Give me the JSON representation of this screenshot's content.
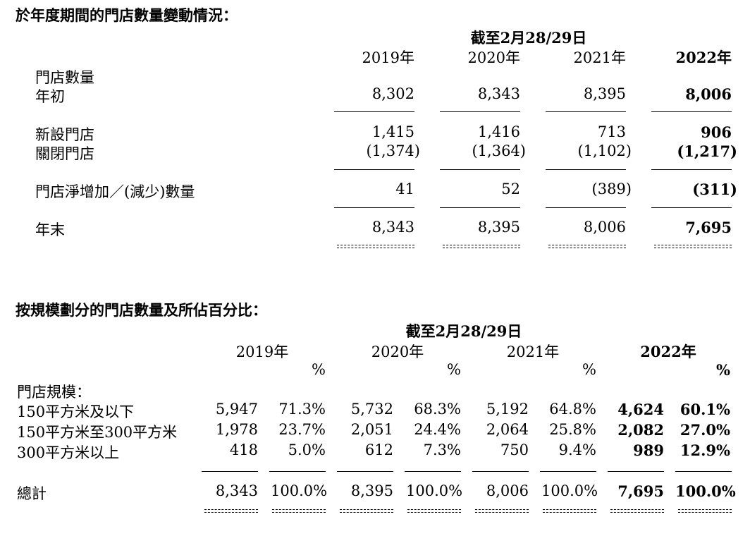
{
  "section1": {
    "title": "於年度期間的門店數量變動情況：",
    "period_header": "截至2月28/29日",
    "years": [
      "2019年",
      "2020年",
      "2021年",
      "2022年"
    ],
    "group_label": "門店數量",
    "rows": [
      {
        "label": "年初",
        "values": [
          "8,302",
          "8,343",
          "8,395",
          "8,006"
        ]
      },
      {
        "label": "新設門店",
        "values": [
          "1,415",
          "1,416",
          "713",
          "906"
        ]
      },
      {
        "label": "關閉門店",
        "values": [
          "(1,374)",
          "(1,364)",
          "(1,102)",
          "(1,217)"
        ]
      },
      {
        "label": "門店淨增加／(減少)數量",
        "values": [
          "41",
          "52",
          "(389)",
          "(311)"
        ]
      },
      {
        "label": "年末",
        "values": [
          "8,343",
          "8,395",
          "8,006",
          "7,695"
        ]
      }
    ]
  },
  "section2": {
    "title": "按規模劃分的門店數量及所佔百分比：",
    "period_header": "截至2月28/29日",
    "years": [
      "2019年",
      "2020年",
      "2021年",
      "2022年"
    ],
    "percent_symbol": "%",
    "group_label": "門店規模：",
    "rows": [
      {
        "label": "150平方米及以下",
        "values": [
          "5,947",
          "71.3%",
          "5,732",
          "68.3%",
          "5,192",
          "64.8%",
          "4,624",
          "60.1%"
        ]
      },
      {
        "label": "150平方米至300平方米",
        "values": [
          "1,978",
          "23.7%",
          "2,051",
          "24.4%",
          "2,064",
          "25.8%",
          "2,082",
          "27.0%"
        ]
      },
      {
        "label": "300平方米以上",
        "values": [
          "418",
          "5.0%",
          "612",
          "7.3%",
          "750",
          "9.4%",
          "989",
          "12.9%"
        ]
      }
    ],
    "total": {
      "label": "總計",
      "values": [
        "8,343",
        "100.0%",
        "8,395",
        "100.0%",
        "8,006",
        "100.0%",
        "7,695",
        "100.0%"
      ]
    }
  }
}
